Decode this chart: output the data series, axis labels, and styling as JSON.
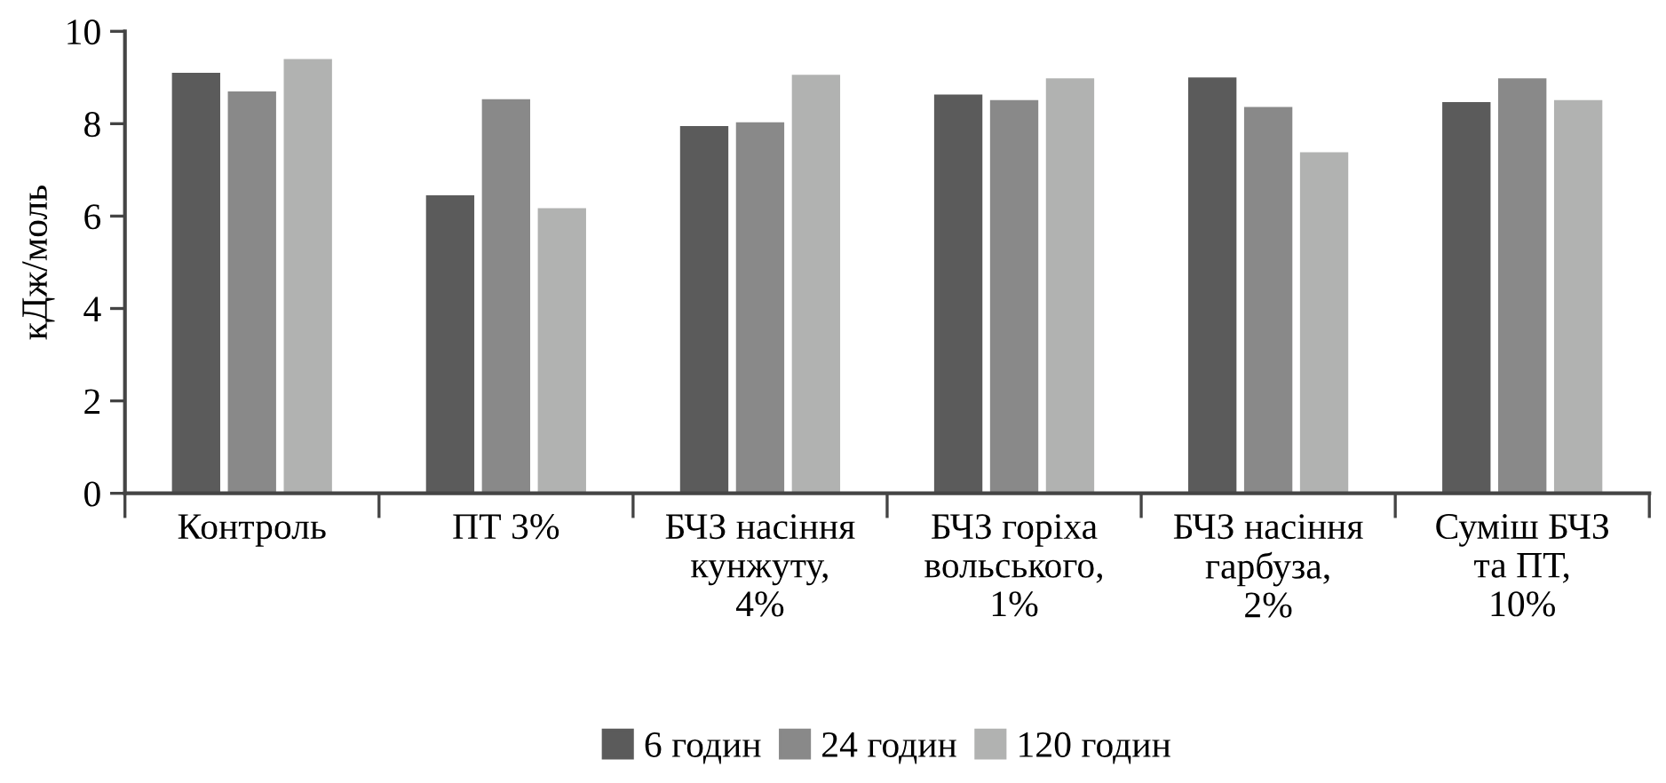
{
  "chart_data": {
    "type": "bar",
    "ylabel": "кДж/моль",
    "categories": [
      "Контроль",
      "ПТ 3%",
      "БЧЗ насіння\nкунжуту,\n4%",
      "БЧЗ горіха\nвольського,\n1%",
      "БЧЗ насіння\nгарбуза,\n2%",
      "Суміш БЧЗ\nта ПТ,\n10%"
    ],
    "series": [
      {
        "name": "6 годин",
        "color": "#5b5b5b",
        "values": [
          9.1,
          6.45,
          7.95,
          8.63,
          9.0,
          8.47
        ]
      },
      {
        "name": "24 годин",
        "color": "#898989",
        "values": [
          8.7,
          8.53,
          8.03,
          8.51,
          8.36,
          8.98
        ]
      },
      {
        "name": "120 годин",
        "color": "#b1b2b1",
        "values": [
          9.4,
          6.17,
          9.06,
          8.98,
          7.38,
          8.51
        ]
      }
    ],
    "ylim": [
      0,
      10
    ],
    "yticks": [
      0,
      2,
      4,
      6,
      8,
      10
    ],
    "grid": false,
    "legend": "bottom"
  }
}
